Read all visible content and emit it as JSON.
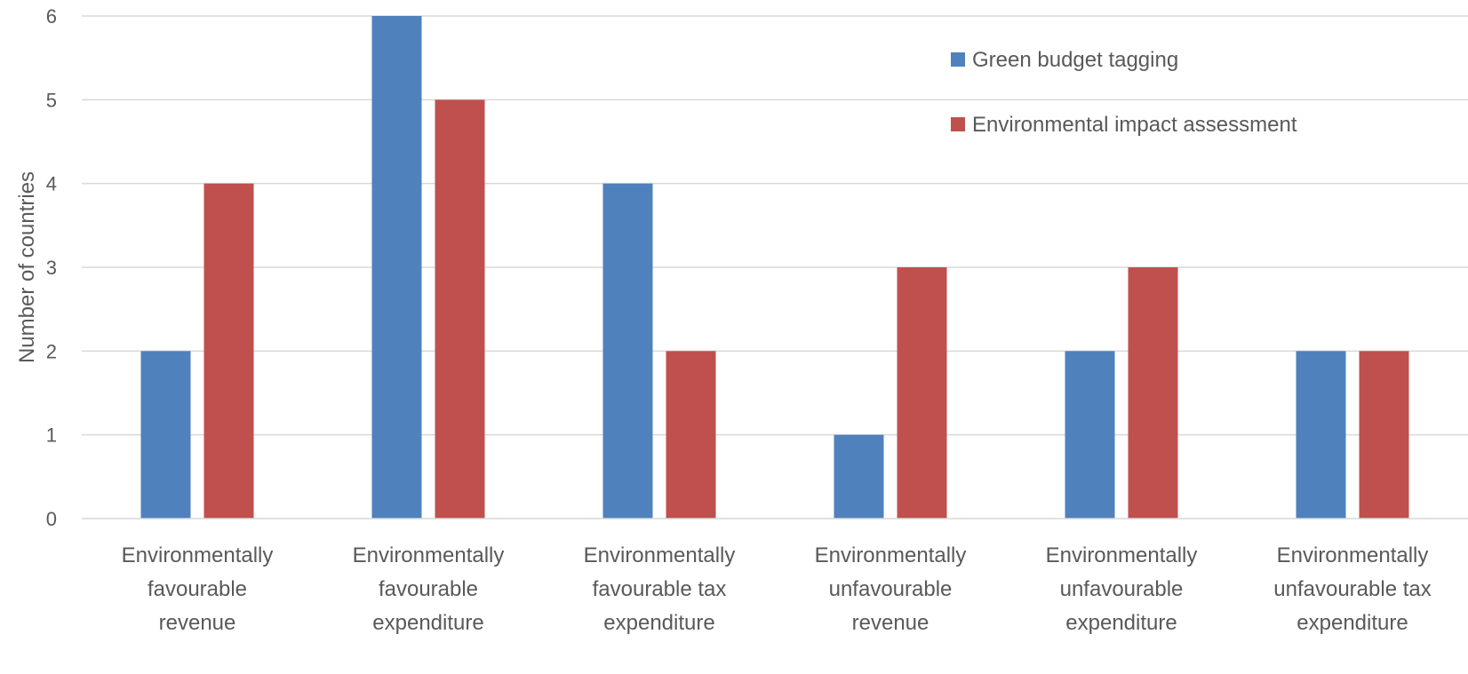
{
  "chart_data": {
    "type": "bar",
    "title": "",
    "xlabel": "",
    "ylabel": "Number of countries",
    "ylim": [
      0,
      6
    ],
    "yticks": [
      0,
      1,
      2,
      3,
      4,
      5,
      6
    ],
    "grid": true,
    "legend_position": "top-right",
    "categories": [
      [
        "Environmentally",
        "favourable",
        "revenue"
      ],
      [
        "Environmentally",
        "favourable",
        "expenditure"
      ],
      [
        "Environmentally",
        "favourable tax",
        "expenditure"
      ],
      [
        "Environmentally",
        "unfavourable",
        "revenue"
      ],
      [
        "Environmentally",
        "unfavourable",
        "expenditure"
      ],
      [
        "Environmentally",
        "unfavourable tax",
        "expenditure"
      ]
    ],
    "series": [
      {
        "name": "Green budget tagging",
        "color": "#4F81BD",
        "values": [
          2,
          6,
          4,
          1,
          2,
          2
        ]
      },
      {
        "name": "Environmental impact assessment",
        "color": "#C0504D",
        "values": [
          4,
          5,
          2,
          3,
          3,
          2
        ]
      }
    ]
  }
}
